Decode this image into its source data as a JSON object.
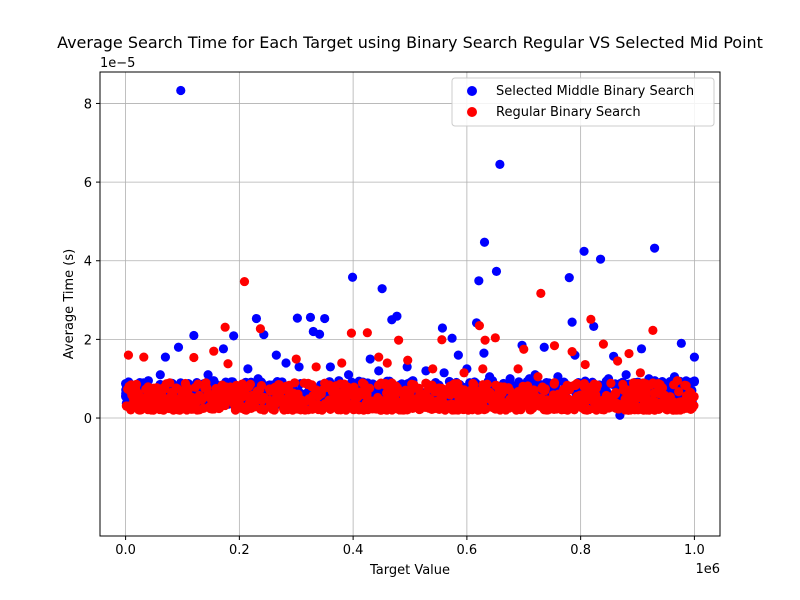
{
  "chart_data": {
    "type": "scatter",
    "title": "Average Search Time for Each Target using Binary Search Regular VS Selected Mid Point",
    "xlabel": "Target Value",
    "ylabel": "Average Time (s)",
    "x_offset_text": "1e6",
    "y_offset_text": "1e−5",
    "xlim": [
      -45000,
      1045000
    ],
    "ylim": [
      -3.0,
      8.8
    ],
    "x_ticks": [
      0,
      200000,
      400000,
      600000,
      800000,
      1000000
    ],
    "x_tick_labels": [
      "0.0",
      "0.2",
      "0.4",
      "0.6",
      "0.8",
      "1.0"
    ],
    "y_ticks": [
      0,
      2,
      4,
      6,
      8
    ],
    "y_tick_labels": [
      "0",
      "2",
      "4",
      "6",
      "8"
    ],
    "grid": true,
    "legend_position": "top-right",
    "series": [
      {
        "name": "Selected Middle Binary Search",
        "color": "#0000ff",
        "x": [
          97000,
          658000,
          631000,
          930000,
          806000,
          835000,
          780000,
          399000,
          451000,
          652000,
          621000,
          230000,
          325000,
          302000,
          350000,
          468000,
          477000,
          785000,
          823000,
          557000,
          617000,
          330000,
          341000,
          243000,
          120000,
          190000,
          172000,
          574000,
          697000,
          736000,
          907000,
          977000,
          1000000,
          858000,
          790000,
          630000,
          585000,
          430000,
          265000,
          93000,
          70000,
          61000,
          40000,
          10000,
          3000,
          145000,
          215000,
          282000,
          305000,
          360000,
          392000,
          445000,
          495000,
          528000,
          560000,
          600000,
          640000,
          676000,
          720000,
          760000,
          849000,
          880000,
          920000,
          965000,
          1000000,
          25000,
          155000,
          233000,
          375000,
          415000,
          505000,
          545000,
          645000,
          710000,
          740000,
          800000,
          895000,
          960000,
          869000
        ],
        "values": [
          8.33,
          6.45,
          4.47,
          4.32,
          4.24,
          4.04,
          3.57,
          3.58,
          3.29,
          3.73,
          3.49,
          2.53,
          2.56,
          2.54,
          2.53,
          2.5,
          2.59,
          2.44,
          2.33,
          2.29,
          2.42,
          2.2,
          2.13,
          2.12,
          2.1,
          2.09,
          1.76,
          2.03,
          1.85,
          1.8,
          1.76,
          1.9,
          1.55,
          1.57,
          1.6,
          1.65,
          1.6,
          1.5,
          1.6,
          1.8,
          1.55,
          1.1,
          0.95,
          0.85,
          0.4,
          1.1,
          1.25,
          1.4,
          1.3,
          1.3,
          1.1,
          1.2,
          1.3,
          1.2,
          1.15,
          1.25,
          1.05,
          1.0,
          1.1,
          1.05,
          1.0,
          1.1,
          1.0,
          1.05,
          0.92,
          0.9,
          0.95,
          1.0,
          0.95,
          0.9,
          0.95,
          0.9,
          0.95,
          1.0,
          0.9,
          0.85,
          0.9,
          0.85,
          0.07
        ],
        "dense_band": {
          "min": 0.35,
          "max": 0.95
        }
      },
      {
        "name": "Regular Binary Search",
        "color": "#ff0000",
        "x": [
          209000,
          730000,
          818000,
          237000,
          632000,
          175000,
          927000,
          397000,
          425000,
          445000,
          480000,
          496000,
          556000,
          622000,
          650000,
          700000,
          754000,
          785000,
          808000,
          840000,
          885000,
          180000,
          120000,
          155000,
          5000,
          32000,
          300000,
          335000,
          380000,
          460000,
          540000,
          595000,
          628000,
          690000,
          725000,
          865000,
          905000,
          970000
        ],
        "values": [
          3.47,
          3.17,
          2.51,
          2.27,
          1.98,
          2.31,
          2.23,
          2.16,
          2.17,
          1.55,
          1.98,
          1.47,
          1.99,
          2.35,
          2.04,
          1.75,
          1.84,
          1.69,
          1.36,
          1.88,
          1.64,
          1.38,
          1.54,
          1.7,
          1.6,
          1.55,
          1.5,
          1.3,
          1.4,
          1.4,
          1.25,
          1.15,
          1.25,
          1.25,
          1.05,
          1.45,
          1.15,
          0.95
        ],
        "dense_band": {
          "min": 0.2,
          "max": 0.9
        }
      }
    ]
  }
}
